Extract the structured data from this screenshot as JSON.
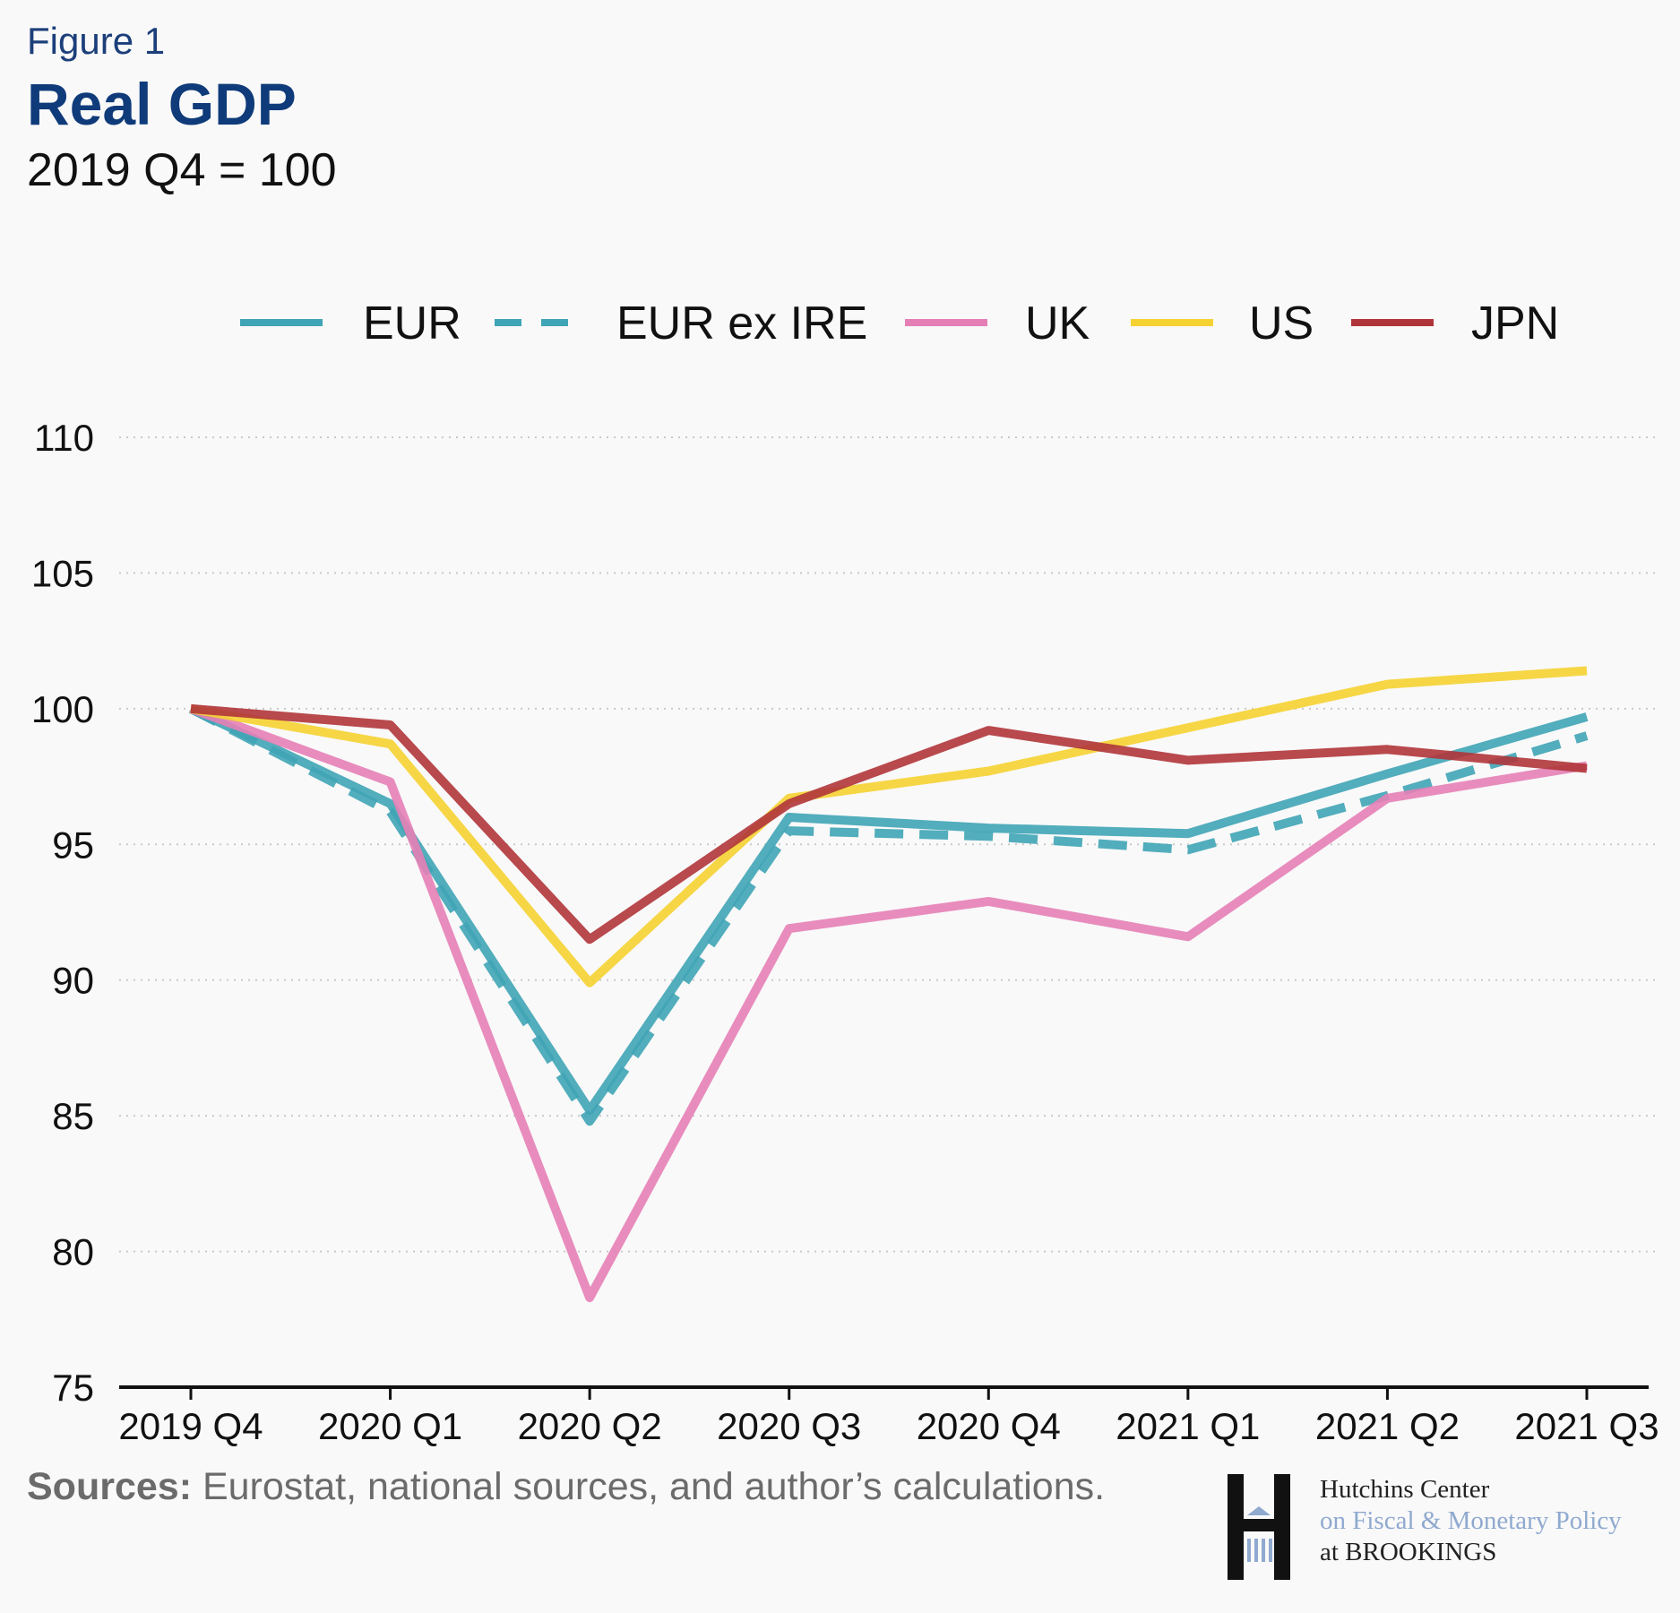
{
  "header": {
    "figure_label": "Figure 1",
    "title": "Real GDP",
    "subtitle": "2019 Q4 = 100"
  },
  "footer": {
    "sources_label": "Sources:",
    "sources_text": " Eurostat, national sources, and author’s calculations."
  },
  "logo": {
    "line1": "Hutchins Center",
    "line2": "on Fiscal & Monetary Policy",
    "line3": "at BROOKINGS"
  },
  "colors": {
    "EUR": "#3fa4b5",
    "UK": "#e57fb6",
    "US": "#f5d231",
    "JPN": "#b0353a",
    "title": "#0f3b7a"
  },
  "chart_data": {
    "type": "line",
    "title": "Real GDP",
    "subtitle": "2019 Q4 = 100",
    "xlabel": "",
    "ylabel": "",
    "ylim": [
      75,
      110
    ],
    "yticks": [
      75,
      80,
      85,
      90,
      95,
      100,
      105,
      110
    ],
    "grid": "horizontal-dotted",
    "legend_position": "top",
    "categories": [
      "2019 Q4",
      "2020 Q1",
      "2020 Q2",
      "2020 Q3",
      "2020 Q4",
      "2021 Q1",
      "2021 Q2",
      "2021 Q3"
    ],
    "series": [
      {
        "name": "EUR",
        "key": "EUR",
        "style": "solid",
        "values": [
          100,
          96.5,
          85.2,
          96.0,
          95.6,
          95.4,
          97.6,
          99.7
        ]
      },
      {
        "name": "EUR ex IRE",
        "key": "EUR",
        "style": "dashed",
        "values": [
          100,
          96.2,
          84.8,
          95.5,
          95.3,
          94.8,
          96.8,
          99.0
        ]
      },
      {
        "name": "UK",
        "key": "UK",
        "style": "solid",
        "values": [
          100,
          97.3,
          78.3,
          91.9,
          92.9,
          91.6,
          96.7,
          97.9
        ]
      },
      {
        "name": "US",
        "key": "US",
        "style": "solid",
        "values": [
          100,
          98.7,
          89.9,
          96.7,
          97.7,
          99.3,
          100.9,
          101.4
        ]
      },
      {
        "name": "JPN",
        "key": "JPN",
        "style": "solid",
        "values": [
          100,
          99.4,
          91.5,
          96.5,
          99.2,
          98.1,
          98.5,
          97.8
        ]
      }
    ]
  }
}
